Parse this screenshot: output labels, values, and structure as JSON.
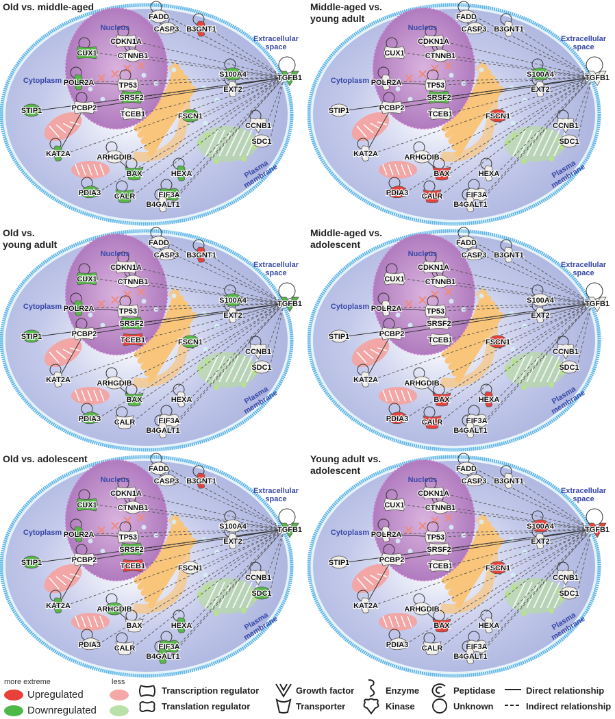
{
  "colors": {
    "up": "#e8413a",
    "down": "#56b947",
    "neutral": "#f2efe8",
    "nucleus": "#a870b8",
    "cytoplasm": "#aab3de",
    "membrane": "#5fb6e6",
    "mito": "#f2a6a6",
    "golgi": "#f9c57a",
    "er": "#b7e08f",
    "compartment_label": "#3848a8"
  },
  "compartments": {
    "nucleus": "Nucleus",
    "cytoplasm": "Cytoplasm",
    "extracellular": "Extracellular\nspace",
    "membrane": "Plasma\nmembrane"
  },
  "panels": [
    {
      "title": "Old vs. middle-aged",
      "regulation": {
        "CUX1": "down",
        "POLR2A": "down",
        "STIP1": "down",
        "KAT2A": "down",
        "PDIA3": "down",
        "CALR": "down",
        "BAX": "down",
        "HEXA": "down",
        "EIF3A": "down",
        "FSCN1": "down",
        "S100A4": "down",
        "SRSF2": "down",
        "TGFB1": "down",
        "B3GNT1": "up"
      }
    },
    {
      "title": "Middle-aged vs.\nyoung adult",
      "regulation": {
        "S100A4": "down",
        "SRSF2": "down",
        "FSCN1": "up",
        "BAX": "up",
        "PDIA3": "up",
        "CALR": "up"
      }
    },
    {
      "title": "Old vs.\nyoung adult",
      "regulation": {
        "CUX1": "down",
        "POLR2A": "down",
        "STIP1": "down",
        "S100A4": "down",
        "SRSF2": "down",
        "FSCN1": "down",
        "BAX": "down",
        "PDIA3": "down",
        "TGFB1": "down",
        "B3GNT1": "up",
        "TCEB1": "up"
      }
    },
    {
      "title": "Middle-aged vs.\nadolescent",
      "regulation": {
        "FSCN1": "up",
        "BAX": "up",
        "PDIA3": "up",
        "CALR": "up",
        "HEXA": "up"
      }
    },
    {
      "title": "Old vs. adolescent",
      "regulation": {
        "CUX1": "down",
        "POLR2A": "down",
        "STIP1": "down",
        "KAT2A": "down",
        "SRSF2": "down",
        "TGFB1": "down",
        "ARHGDIB": "down",
        "HEXA": "down",
        "EIF3A": "down",
        "B4GALT1": "down",
        "SDC1": "down",
        "B3GNT1": "up",
        "TCEB1": "up"
      }
    },
    {
      "title": "Young adult vs.\nadolescent",
      "regulation": {
        "FSCN1": "up",
        "BAX": "up",
        "S100A4": "up",
        "TGFB1": "up"
      }
    }
  ],
  "legend": {
    "more_extreme": "more extreme",
    "less": "less",
    "upregulated": "Upregulated",
    "downregulated": "Downregulated",
    "transcription_regulator": "Transcription regulator",
    "translation_regulator": "Translation regulator",
    "growth_factor": "Growth factor",
    "transporter": "Transporter",
    "enzyme": "Enzyme",
    "kinase": "Kinase",
    "peptidase": "Peptidase",
    "unknown": "Unknown",
    "direct": "Direct relationship",
    "indirect": "Indirect relationship"
  }
}
